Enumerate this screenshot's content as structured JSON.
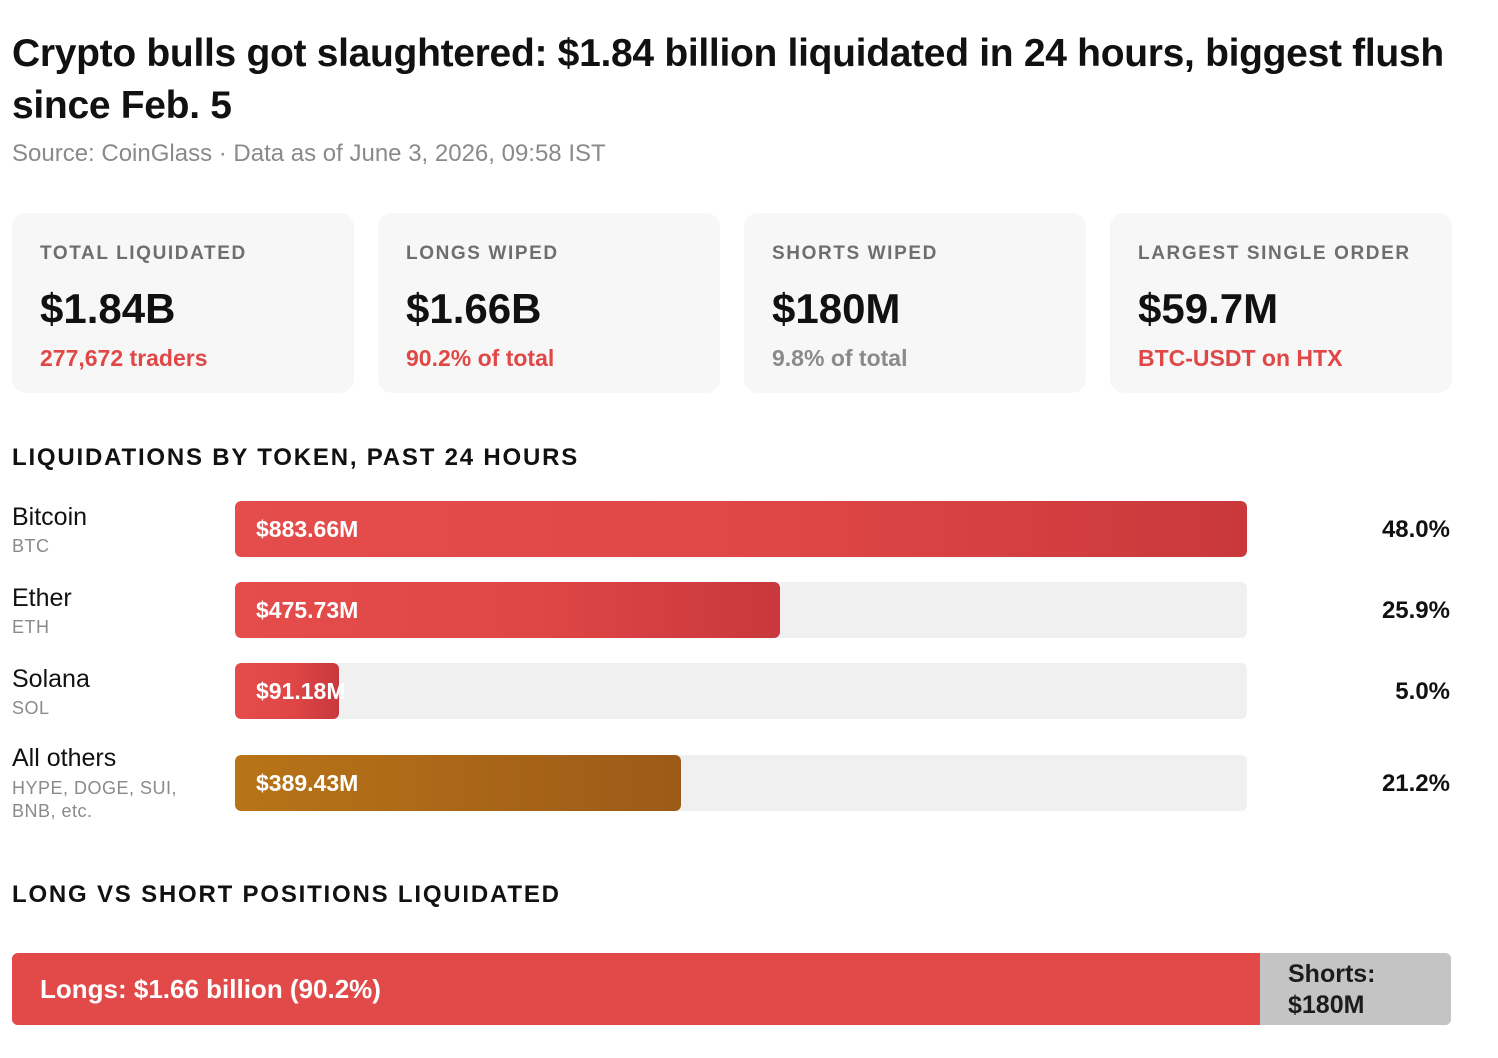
{
  "header": {
    "title": "Crypto bulls got slaughtered: $1.84 billion liquidated in 24 hours, biggest flush since Feb. 5",
    "source": "Source: CoinGlass · Data as of June 3, 2026, 09:58 IST"
  },
  "stats": [
    {
      "label": "TOTAL LIQUIDATED",
      "value": "$1.84B",
      "sub": "277,672 traders",
      "sub_color": "#e04848"
    },
    {
      "label": "LONGS WIPED",
      "value": "$1.66B",
      "sub": "90.2% of total",
      "sub_color": "#e04848"
    },
    {
      "label": "SHORTS WIPED",
      "value": "$180M",
      "sub": "9.8% of total",
      "sub_color": "#8a8a8a"
    },
    {
      "label": "LARGEST SINGLE ORDER",
      "value": "$59.7M",
      "sub": "BTC-USDT on HTX",
      "sub_color": "#e04848"
    }
  ],
  "sections": {
    "by_token": "LIQUIDATIONS BY TOKEN, PAST 24 HOURS",
    "long_short": "LONG VS SHORT POSITIONS LIQUIDATED"
  },
  "chart_data": [
    {
      "type": "bar",
      "orientation": "horizontal",
      "title": "LIQUIDATIONS BY TOKEN, PAST 24 HOURS",
      "unit": "million USD",
      "xlim": [
        0,
        883.66
      ],
      "categories": [
        "Bitcoin",
        "Ether",
        "Solana",
        "All others"
      ],
      "symbols": [
        "BTC",
        "ETH",
        "SOL",
        "HYPE, DOGE, SUI, BNB, etc."
      ],
      "values": [
        883.66,
        475.73,
        91.18,
        389.43
      ],
      "value_labels": [
        "$883.66M",
        "$475.73M",
        "$91.18M",
        "$389.43M"
      ],
      "percent_labels": [
        "48.0%",
        "25.9%",
        "5.0%",
        "21.2%"
      ],
      "colors": [
        "#e04848",
        "#e04848",
        "#e04848",
        "#b06a18"
      ]
    },
    {
      "type": "bar",
      "orientation": "stacked-horizontal",
      "title": "LONG VS SHORT POSITIONS LIQUIDATED",
      "categories": [
        "Longs",
        "Shorts"
      ],
      "values": [
        90.2,
        9.8
      ],
      "unit": "percent",
      "labels": [
        "Longs: $1.66 billion (90.2%)",
        "Shorts: $180M"
      ],
      "colors": [
        "#e24a4a",
        "#c4c4c4"
      ]
    }
  ]
}
